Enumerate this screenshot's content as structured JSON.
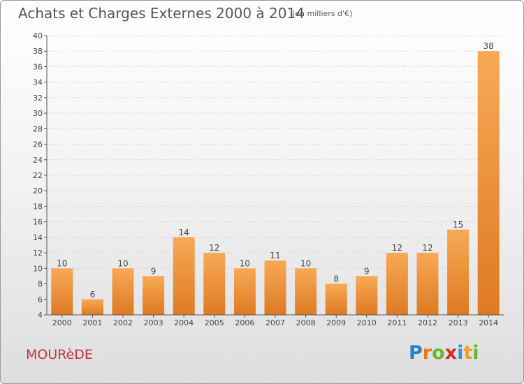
{
  "header": {
    "title": "Achats et Charges Externes 2000 à 2014",
    "unit": "(en milliers d'€)"
  },
  "footer": {
    "commune": "MOURèDE",
    "logo": {
      "letters": [
        "P",
        "r",
        "o",
        "x",
        "i",
        "t",
        "i"
      ],
      "colors": [
        "#2a7fc1",
        "#e8761e",
        "#6ab42d",
        "#d9292a",
        "#2a9ad6",
        "#e8a21e",
        "#6ab42d"
      ]
    }
  },
  "colors": {
    "bar_light": "#f8a956",
    "bar_dark": "#de7a22",
    "axis": "#555555",
    "grid": "#cccccc"
  },
  "chart_data": {
    "type": "bar",
    "categories": [
      "2000",
      "2001",
      "2002",
      "2003",
      "2004",
      "2005",
      "2006",
      "2007",
      "2008",
      "2009",
      "2010",
      "2011",
      "2012",
      "2013",
      "2014"
    ],
    "values": [
      10,
      6,
      10,
      9,
      14,
      12,
      10,
      11,
      10,
      8,
      9,
      12,
      12,
      15,
      38
    ],
    "ylim": [
      4,
      40
    ],
    "yticks": [
      4,
      6,
      8,
      10,
      12,
      14,
      16,
      18,
      20,
      22,
      24,
      26,
      28,
      30,
      32,
      34,
      36,
      38,
      40
    ],
    "data_labels": true
  }
}
